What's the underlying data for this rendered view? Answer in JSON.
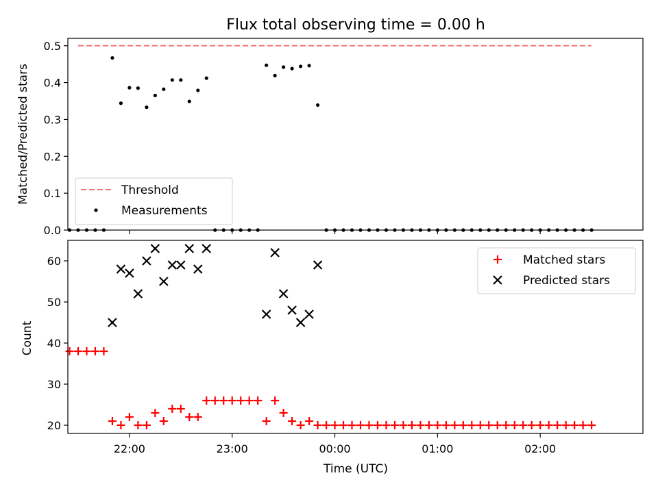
{
  "chart_data": [
    {
      "type": "scatter",
      "title": "Flux total observing time = 0.00 h",
      "ylabel": "Matched/Predicted stars",
      "xlabel": "",
      "xlim": [
        -2.6,
        3.0
      ],
      "ylim": [
        0,
        0.52
      ],
      "yticks": [
        0.0,
        0.1,
        0.2,
        0.3,
        0.4,
        0.5
      ],
      "ytick_labels": [
        "0.0",
        "0.1",
        "0.2",
        "0.3",
        "0.4",
        "0.5"
      ],
      "legend_position": "lower-left",
      "series": [
        {
          "name": "Threshold",
          "kind": "dashed-line",
          "color": "#f07878",
          "x": [
            -2.5,
            2.5
          ],
          "y": [
            0.5,
            0.5
          ]
        },
        {
          "name": "Measurements",
          "kind": "dots",
          "color": "#000000",
          "points": [
            [
              -2.5833,
              0
            ],
            [
              -2.5,
              0
            ],
            [
              -2.4167,
              0
            ],
            [
              -2.3333,
              0
            ],
            [
              -2.25,
              0
            ],
            [
              -2.1667,
              0.467
            ],
            [
              -2.0833,
              0.344
            ],
            [
              -2.0,
              0.386
            ],
            [
              -1.9167,
              0.385
            ],
            [
              -1.8333,
              0.333
            ],
            [
              -1.75,
              0.365
            ],
            [
              -1.6667,
              0.382
            ],
            [
              -1.5833,
              0.407
            ],
            [
              -1.5,
              0.407
            ],
            [
              -1.4167,
              0.349
            ],
            [
              -1.3333,
              0.379
            ],
            [
              -1.25,
              0.412
            ],
            [
              -1.1667,
              0
            ],
            [
              -1.0833,
              0
            ],
            [
              -1.0,
              0
            ],
            [
              -0.9167,
              0
            ],
            [
              -0.8333,
              0
            ],
            [
              -0.75,
              0
            ],
            [
              -0.6667,
              0.447
            ],
            [
              -0.5833,
              0.419
            ],
            [
              -0.5,
              0.442
            ],
            [
              -0.4167,
              0.438
            ],
            [
              -0.3333,
              0.444
            ],
            [
              -0.25,
              0.446
            ],
            [
              -0.1667,
              0.339
            ],
            [
              -0.0833,
              0
            ],
            [
              0.0,
              0
            ],
            [
              0.0833,
              0
            ],
            [
              0.1667,
              0
            ],
            [
              0.25,
              0
            ],
            [
              0.3333,
              0
            ],
            [
              0.4167,
              0
            ],
            [
              0.5,
              0
            ],
            [
              0.5833,
              0
            ],
            [
              0.6667,
              0
            ],
            [
              0.75,
              0
            ],
            [
              0.8333,
              0
            ],
            [
              0.9167,
              0
            ],
            [
              1.0,
              0
            ],
            [
              1.0833,
              0
            ],
            [
              1.1667,
              0
            ],
            [
              1.25,
              0
            ],
            [
              1.3333,
              0
            ],
            [
              1.4167,
              0
            ],
            [
              1.5,
              0
            ],
            [
              1.5833,
              0
            ],
            [
              1.6667,
              0
            ],
            [
              1.75,
              0
            ],
            [
              1.8333,
              0
            ],
            [
              1.9167,
              0
            ],
            [
              2.0,
              0
            ],
            [
              2.0833,
              0
            ],
            [
              2.1667,
              0
            ],
            [
              2.25,
              0
            ],
            [
              2.3333,
              0
            ],
            [
              2.4167,
              0
            ],
            [
              2.5,
              0
            ]
          ]
        }
      ]
    },
    {
      "type": "scatter",
      "title": "",
      "ylabel": "Count",
      "xlabel": "Time (UTC)",
      "xlim": [
        -2.6,
        3.0
      ],
      "ylim": [
        18,
        65
      ],
      "yticks": [
        20,
        30,
        40,
        50,
        60
      ],
      "ytick_labels": [
        "20",
        "30",
        "40",
        "50",
        "60"
      ],
      "xticks": [
        -2,
        -1,
        0,
        1,
        2
      ],
      "xtick_labels": [
        "22:00",
        "23:00",
        "00:00",
        "01:00",
        "02:00"
      ],
      "legend_position": "upper-right",
      "series": [
        {
          "name": "Matched stars",
          "kind": "plus",
          "color": "#ff0000",
          "points": [
            [
              -2.5833,
              38
            ],
            [
              -2.5,
              38
            ],
            [
              -2.4167,
              38
            ],
            [
              -2.3333,
              38
            ],
            [
              -2.25,
              38
            ],
            [
              -2.1667,
              21
            ],
            [
              -2.0833,
              20
            ],
            [
              -2.0,
              22
            ],
            [
              -1.9167,
              20
            ],
            [
              -1.8333,
              20
            ],
            [
              -1.75,
              23
            ],
            [
              -1.6667,
              21
            ],
            [
              -1.5833,
              24
            ],
            [
              -1.5,
              24
            ],
            [
              -1.4167,
              22
            ],
            [
              -1.3333,
              22
            ],
            [
              -1.25,
              26
            ],
            [
              -1.1667,
              26
            ],
            [
              -1.0833,
              26
            ],
            [
              -1.0,
              26
            ],
            [
              -0.9167,
              26
            ],
            [
              -0.8333,
              26
            ],
            [
              -0.75,
              26
            ],
            [
              -0.6667,
              21
            ],
            [
              -0.5833,
              26
            ],
            [
              -0.5,
              23
            ],
            [
              -0.4167,
              21
            ],
            [
              -0.3333,
              20
            ],
            [
              -0.25,
              21
            ],
            [
              -0.1667,
              20
            ],
            [
              -0.0833,
              20
            ],
            [
              0.0,
              20
            ],
            [
              0.0833,
              20
            ],
            [
              0.1667,
              20
            ],
            [
              0.25,
              20
            ],
            [
              0.3333,
              20
            ],
            [
              0.4167,
              20
            ],
            [
              0.5,
              20
            ],
            [
              0.5833,
              20
            ],
            [
              0.6667,
              20
            ],
            [
              0.75,
              20
            ],
            [
              0.8333,
              20
            ],
            [
              0.9167,
              20
            ],
            [
              1.0,
              20
            ],
            [
              1.0833,
              20
            ],
            [
              1.1667,
              20
            ],
            [
              1.25,
              20
            ],
            [
              1.3333,
              20
            ],
            [
              1.4167,
              20
            ],
            [
              1.5,
              20
            ],
            [
              1.5833,
              20
            ],
            [
              1.6667,
              20
            ],
            [
              1.75,
              20
            ],
            [
              1.8333,
              20
            ],
            [
              1.9167,
              20
            ],
            [
              2.0,
              20
            ],
            [
              2.0833,
              20
            ],
            [
              2.1667,
              20
            ],
            [
              2.25,
              20
            ],
            [
              2.3333,
              20
            ],
            [
              2.4167,
              20
            ],
            [
              2.5,
              20
            ]
          ]
        },
        {
          "name": "Predicted stars",
          "kind": "x",
          "color": "#000000",
          "points": [
            [
              -2.1667,
              45
            ],
            [
              -2.0833,
              58
            ],
            [
              -2.0,
              57
            ],
            [
              -1.9167,
              52
            ],
            [
              -1.8333,
              60
            ],
            [
              -1.75,
              63
            ],
            [
              -1.6667,
              55
            ],
            [
              -1.5833,
              59
            ],
            [
              -1.5,
              59
            ],
            [
              -1.4167,
              63
            ],
            [
              -1.3333,
              58
            ],
            [
              -1.25,
              63
            ],
            [
              -0.6667,
              47
            ],
            [
              -0.5833,
              62
            ],
            [
              -0.5,
              52
            ],
            [
              -0.4167,
              48
            ],
            [
              -0.3333,
              45
            ],
            [
              -0.25,
              47
            ],
            [
              -0.1667,
              59
            ]
          ]
        }
      ]
    }
  ]
}
